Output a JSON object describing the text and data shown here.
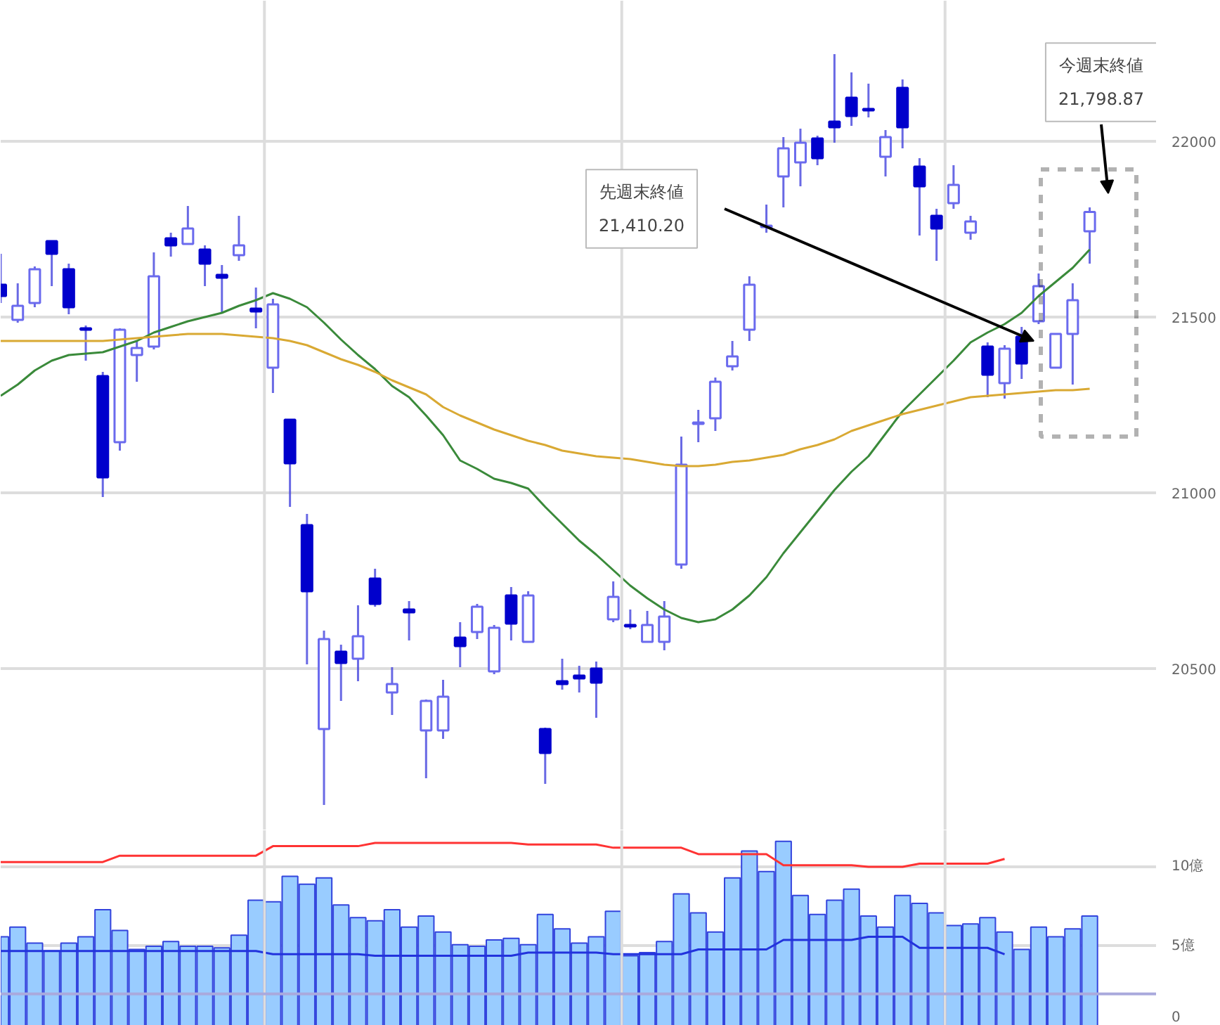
{
  "chart_data": [
    {
      "type": "candlestick",
      "categories": [
        null,
        null,
        null,
        null,
        null,
        null,
        null,
        null,
        null,
        null,
        null,
        null,
        null,
        null,
        null,
        null,
        null,
        null,
        null,
        null,
        null,
        null,
        null,
        null,
        null,
        null,
        null,
        null,
        null,
        null,
        null,
        null,
        null,
        null,
        null,
        null,
        null,
        null,
        null,
        null,
        null,
        null,
        null,
        null,
        null,
        null,
        null,
        null,
        null,
        null,
        null,
        null,
        null,
        null,
        null,
        null,
        null,
        null,
        null,
        null,
        null,
        null,
        null,
        null,
        null
      ],
      "ohlc": [
        [
          21592,
          21680,
          21540,
          21560
        ],
        [
          21492,
          21596,
          21484,
          21532
        ],
        [
          21540,
          21644,
          21528,
          21636
        ],
        [
          21716,
          21716,
          21588,
          21680
        ],
        [
          21636,
          21652,
          21508,
          21528
        ],
        [
          21468,
          21476,
          21376,
          21464
        ],
        [
          21332,
          21344,
          20988,
          21044
        ],
        [
          21144,
          21468,
          21120,
          21464
        ],
        [
          21392,
          21432,
          21316,
          21412
        ],
        [
          21416,
          21684,
          21408,
          21616
        ],
        [
          21724,
          21740,
          21672,
          21704
        ],
        [
          21708,
          21816,
          21708,
          21752
        ],
        [
          21692,
          21704,
          21588,
          21652
        ],
        [
          21620,
          21648,
          21512,
          21612
        ],
        [
          21676,
          21788,
          21660,
          21704
        ],
        [
          21524,
          21584,
          21468,
          21516
        ],
        [
          21356,
          21552,
          21284,
          21536
        ],
        [
          21208,
          21208,
          20960,
          21084
        ],
        [
          20908,
          20940,
          20512,
          20720
        ],
        [
          20328,
          20608,
          20112,
          20584
        ],
        [
          20548,
          20568,
          20408,
          20516
        ],
        [
          20528,
          20680,
          20464,
          20592
        ],
        [
          20756,
          20784,
          20676,
          20684
        ],
        [
          20432,
          20504,
          20368,
          20456
        ],
        [
          20668,
          20692,
          20580,
          20660
        ],
        [
          20324,
          20412,
          20188,
          20408
        ],
        [
          20324,
          20468,
          20300,
          20420
        ],
        [
          20588,
          20632,
          20504,
          20564
        ],
        [
          20604,
          20684,
          20584,
          20676
        ],
        [
          20492,
          20624,
          20484,
          20616
        ],
        [
          20708,
          20732,
          20580,
          20628
        ],
        [
          20576,
          20720,
          20576,
          20708
        ],
        [
          20328,
          20332,
          20172,
          20260
        ],
        [
          20464,
          20528,
          20440,
          20456
        ],
        [
          20480,
          20508,
          20432,
          20472
        ],
        [
          20500,
          20520,
          20360,
          20460
        ],
        [
          20640,
          20748,
          20632,
          20704
        ],
        [
          20624,
          20668,
          20612,
          20620
        ],
        [
          20576,
          20664,
          20576,
          20624
        ],
        [
          20576,
          20692,
          20552,
          20648
        ],
        [
          20796,
          21160,
          20784,
          21080
        ],
        [
          21196,
          21236,
          21144,
          21200
        ],
        [
          21212,
          21328,
          21176,
          21316
        ],
        [
          21360,
          21432,
          21348,
          21388
        ],
        [
          21464,
          21616,
          21432,
          21592
        ],
        [
          21756,
          21820,
          21740,
          21760
        ],
        [
          21900,
          22012,
          21812,
          21980
        ],
        [
          21940,
          22036,
          21872,
          21996
        ],
        [
          22008,
          22016,
          21932,
          21952
        ],
        [
          22056,
          22248,
          21996,
          22040
        ],
        [
          22124,
          22196,
          22044,
          22072
        ],
        [
          22092,
          22164,
          22068,
          22088
        ],
        [
          21956,
          22032,
          21900,
          22012
        ],
        [
          22152,
          22176,
          21980,
          22040
        ],
        [
          21928,
          21952,
          21732,
          21872
        ],
        [
          21788,
          21808,
          21660,
          21752
        ],
        [
          21824,
          21932,
          21808,
          21876
        ],
        [
          21740,
          21788,
          21720,
          21772
        ],
        [
          21416,
          21428,
          21272,
          21336
        ],
        [
          21312,
          21420,
          21268,
          21410.2
        ],
        [
          21444,
          21472,
          21324,
          21368
        ],
        [
          21488,
          21624,
          21480,
          21588
        ],
        [
          21356,
          21452,
          21356,
          21452
        ],
        [
          21452,
          21596,
          21308,
          21548
        ],
        [
          21744,
          21812,
          21652,
          21798.87
        ]
      ],
      "colors": [
        "#0000cc",
        "#ffffff",
        "#ffffff",
        "#0000cc",
        "#0000cc",
        "#0000cc",
        "#0000cc",
        "#ffffff",
        "#ffffff",
        "#ffffff",
        "#0000cc",
        "#ffffff",
        "#0000cc",
        "#0000cc",
        "#ffffff",
        "#0000cc",
        "#ffffff",
        "#0000cc",
        "#0000cc",
        "#ffffff",
        "#0000cc",
        "#ffffff",
        "#0000cc",
        "#ffffff",
        "#0000cc",
        "#ffffff",
        "#ffffff",
        "#0000cc",
        "#ffffff",
        "#ffffff",
        "#0000cc",
        "#ffffff",
        "#0000cc",
        "#0000cc",
        "#0000cc",
        "#0000cc",
        "#ffffff",
        "#0000cc",
        "#ffffff",
        "#ffffff",
        "#ffffff",
        "#ffffff",
        "#ffffff",
        "#ffffff",
        "#ffffff",
        "#ffffff",
        "#ffffff",
        "#ffffff",
        "#0000cc",
        "#0000cc",
        "#0000cc",
        "#0000cc",
        "#ffffff",
        "#0000cc",
        "#0000cc",
        "#0000cc",
        "#ffffff",
        "#ffffff",
        "#0000cc",
        "#ffffff",
        "#0000cc",
        "#ffffff",
        "#ffffff",
        "#ffffff",
        "#ffffff"
      ],
      "series": [
        {
          "type": "line",
          "color": "#3a8a3a",
          "values": [
            21276,
            21308,
            21348,
            21376,
            21392,
            21396,
            21400,
            21416,
            21432,
            21456,
            21472,
            21488,
            21500,
            21512,
            21532,
            21548,
            21568,
            21552,
            21528,
            21484,
            21436,
            21392,
            21352,
            21304,
            21272,
            21220,
            21164,
            21092,
            21068,
            21040,
            21028,
            21012,
            20960,
            20912,
            20864,
            20824,
            20780,
            20736,
            20700,
            20668,
            20644,
            20632,
            20640,
            20668,
            20708,
            20760,
            20828,
            20888,
            20948,
            21008,
            21060,
            21104,
            21168,
            21232,
            21280,
            21328,
            21376,
            21428,
            21456,
            21480,
            21512,
            21560,
            21600,
            21640,
            21692
          ]
        },
        {
          "type": "line",
          "color": "#d9a933",
          "values": [
            21432,
            21432,
            21432,
            21432,
            21432,
            21432,
            21432,
            21436,
            21440,
            21444,
            21448,
            21452,
            21452,
            21452,
            21448,
            21444,
            21440,
            21432,
            21420,
            21400,
            21380,
            21364,
            21344,
            21320,
            21300,
            21280,
            21244,
            21220,
            21200,
            21180,
            21164,
            21148,
            21136,
            21120,
            21112,
            21104,
            21100,
            21096,
            21088,
            21080,
            21076,
            21076,
            21080,
            21088,
            21092,
            21100,
            21108,
            21124,
            21136,
            21152,
            21176,
            21192,
            21208,
            21224,
            21236,
            21248,
            21260,
            21272,
            21276,
            21280,
            21284,
            21288,
            21292,
            21292,
            21296
          ]
        }
      ],
      "ylim": [
        20040,
        22400
      ],
      "yticks": [
        20500,
        21000,
        21500,
        22000
      ],
      "grid": "y",
      "tick_labels": "y",
      "annotations": [
        "先週末終値\n21,410.20",
        "今週末終値\n21,798.87"
      ]
    },
    {
      "type": "bar",
      "categories": [
        null,
        null,
        null,
        null,
        null,
        null,
        null,
        null,
        null,
        null,
        null,
        null,
        null,
        null,
        null,
        null,
        null,
        null,
        null,
        null,
        null,
        null,
        null,
        null,
        null,
        null,
        null,
        null,
        null,
        null,
        null,
        null,
        null,
        null,
        null,
        null,
        null,
        null,
        null,
        null,
        null,
        null,
        null,
        null,
        null,
        null,
        null,
        null,
        null,
        null,
        null,
        null,
        null,
        null,
        null,
        null,
        null,
        null,
        null,
        null,
        null,
        null,
        null,
        null,
        null
      ],
      "series": [
        {
          "type": "bar",
          "color": "#99ccff",
          "values": [
            5.6,
            6.2,
            5.2,
            4.7,
            5.2,
            5.6,
            7.3,
            6.0,
            4.8,
            5.0,
            5.3,
            5.0,
            5.0,
            4.9,
            5.7,
            7.9,
            7.8,
            9.4,
            8.9,
            9.3,
            7.6,
            6.8,
            6.6,
            7.3,
            6.2,
            6.9,
            5.9,
            5.1,
            5.0,
            5.4,
            5.5,
            5.1,
            7.0,
            6.1,
            5.2,
            5.6,
            7.2,
            4.4,
            4.6,
            5.3,
            8.3,
            7.1,
            5.9,
            9.3,
            11.0,
            9.7,
            11.6,
            8.2,
            7.0,
            7.9,
            8.6,
            6.9,
            6.2,
            8.2,
            7.7,
            7.1,
            6.3,
            6.4,
            6.8,
            5.9,
            4.8,
            6.2,
            5.6,
            6.1,
            6.9
          ]
        },
        {
          "type": "line",
          "color": "#ff3333",
          "values": [
            10.3,
            10.3,
            10.3,
            10.3,
            10.3,
            10.3,
            10.3,
            10.7,
            10.7,
            10.7,
            10.7,
            10.7,
            10.7,
            10.7,
            10.7,
            10.7,
            11.3,
            11.3,
            11.3,
            11.3,
            11.3,
            11.3,
            11.5,
            11.5,
            11.5,
            11.5,
            11.5,
            11.5,
            11.5,
            11.5,
            11.5,
            11.4,
            11.4,
            11.4,
            11.4,
            11.4,
            11.2,
            11.2,
            11.2,
            11.2,
            11.2,
            10.8,
            10.8,
            10.8,
            10.8,
            10.8,
            10.1,
            10.1,
            10.1,
            10.1,
            10.1,
            10.0,
            10.0,
            10.0,
            10.2,
            10.2,
            10.2,
            10.2,
            10.2,
            10.5,
            null,
            null,
            null,
            null,
            null
          ]
        },
        {
          "type": "line",
          "color": "#2233dd",
          "values": [
            4.7,
            4.7,
            4.7,
            4.7,
            4.7,
            4.7,
            4.7,
            4.7,
            4.7,
            4.7,
            4.7,
            4.7,
            4.7,
            4.7,
            4.7,
            4.7,
            4.5,
            4.5,
            4.5,
            4.5,
            4.5,
            4.5,
            4.4,
            4.4,
            4.4,
            4.4,
            4.4,
            4.4,
            4.4,
            4.4,
            4.4,
            4.6,
            4.6,
            4.6,
            4.6,
            4.6,
            4.5,
            4.5,
            4.5,
            4.5,
            4.5,
            4.8,
            4.8,
            4.8,
            4.8,
            4.8,
            5.4,
            5.4,
            5.4,
            5.4,
            5.4,
            5.6,
            5.6,
            5.6,
            4.9,
            4.9,
            4.9,
            4.9,
            4.9,
            4.5,
            null,
            null,
            null,
            null,
            null
          ]
        }
      ],
      "ylim": [
        0,
        12.3
      ],
      "yticks": [
        0,
        {
          "value": 5,
          "label": "5億"
        },
        {
          "value": 10,
          "label": "10億"
        }
      ],
      "grid": "y",
      "tick_labels": "y",
      "ref_lines": [
        {
          "axis": "y",
          "value": 2,
          "color": "#aaaadd"
        }
      ]
    }
  ]
}
